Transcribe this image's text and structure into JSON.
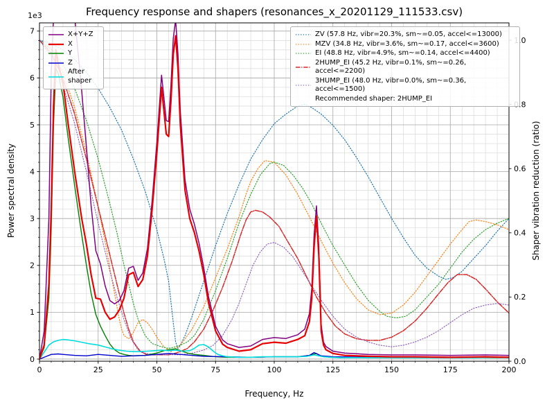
{
  "figure": {
    "title": "Frequency response and shapers (resonances_x_20201129_111533.csv)",
    "xlabel": "Frequency, Hz",
    "ylabel_left": "Power spectral density",
    "ylabel_right": "Shaper vibration reduction (ratio)",
    "offset_text": "1e3"
  },
  "chart_data": {
    "type": "line",
    "title": "Frequency response and shapers (resonances_x_20201129_111533.csv)",
    "xlabel": "Frequency, Hz",
    "ylabel_left": "Power spectral density",
    "ylabel_right": "Shaper vibration reduction (ratio)",
    "grid": true,
    "xlim": [
      0,
      200
    ],
    "x_major_ticks": [
      0,
      25,
      50,
      75,
      100,
      125,
      150,
      175,
      200
    ],
    "x_minor_step": 5,
    "left_axis": {
      "unit_multiplier": "1e3",
      "ylim": [
        0,
        7.2
      ],
      "ticks": [
        0,
        1,
        2,
        3,
        4,
        5,
        6,
        7
      ],
      "minor_step": 0.2
    },
    "right_axis": {
      "ylim": [
        0,
        1.05
      ],
      "tick_labels": [
        "0.0",
        "0.2",
        "0.4",
        "0.6",
        "0.8",
        "1.0"
      ],
      "tick_values": [
        0,
        0.2,
        0.4,
        0.6,
        0.8,
        1.0
      ]
    },
    "recommendation": "Recommended shaper: 2HUMP_EI",
    "psd_series": [
      {
        "name": "X+Y+Z",
        "color": "#800080",
        "style": "solid",
        "width": 1.5,
        "axis": "left",
        "x": [
          0,
          2,
          4,
          5,
          6,
          7,
          8,
          10,
          12,
          15,
          18,
          20,
          22,
          24,
          26,
          28,
          30,
          32,
          34,
          36,
          38,
          40,
          42,
          44,
          46,
          48,
          50,
          52,
          53,
          54,
          55,
          56,
          57,
          58,
          59,
          60,
          62,
          64,
          66,
          68,
          70,
          72,
          75,
          78,
          80,
          85,
          90,
          95,
          100,
          105,
          110,
          113,
          115,
          116,
          117,
          118,
          119,
          120,
          121,
          122,
          125,
          130,
          140,
          150,
          160,
          175,
          190,
          200
        ],
        "y": [
          0,
          0.6,
          3.0,
          6.1,
          7.3,
          7.3,
          7.3,
          7.3,
          7.3,
          7.3,
          5.72,
          4.52,
          3.27,
          2.31,
          2.03,
          1.56,
          1.25,
          1.18,
          1.25,
          1.46,
          1.94,
          1.98,
          1.68,
          1.84,
          2.36,
          3.38,
          4.63,
          6.06,
          5.58,
          5.09,
          5.07,
          5.83,
          6.84,
          7.24,
          6.5,
          5.28,
          3.82,
          3.2,
          2.88,
          2.47,
          1.94,
          1.33,
          0.7,
          0.41,
          0.33,
          0.25,
          0.28,
          0.42,
          0.46,
          0.44,
          0.52,
          0.64,
          0.97,
          1.51,
          2.65,
          3.27,
          2.38,
          0.73,
          0.36,
          0.27,
          0.17,
          0.13,
          0.1,
          0.09,
          0.09,
          0.08,
          0.09,
          0.08
        ]
      },
      {
        "name": "X",
        "color": "#e60000",
        "style": "solid",
        "width": 2.2,
        "axis": "left",
        "x": [
          0,
          2,
          4,
          5,
          6,
          7,
          8,
          10,
          12,
          15,
          18,
          20,
          22,
          24,
          26,
          28,
          30,
          32,
          34,
          36,
          38,
          40,
          42,
          44,
          46,
          48,
          50,
          52,
          53,
          54,
          55,
          56,
          57,
          58,
          59,
          60,
          62,
          64,
          66,
          68,
          70,
          72,
          75,
          78,
          80,
          85,
          90,
          95,
          100,
          105,
          110,
          113,
          115,
          116,
          117,
          118,
          119,
          120,
          121,
          122,
          125,
          130,
          140,
          150,
          160,
          175,
          190,
          200
        ],
        "y": [
          0,
          0.3,
          1.6,
          3.2,
          5.4,
          6.6,
          6.3,
          5.9,
          5.1,
          4.0,
          3.0,
          2.45,
          1.8,
          1.3,
          1.28,
          1.0,
          0.85,
          0.9,
          1.05,
          1.3,
          1.8,
          1.85,
          1.55,
          1.7,
          2.2,
          3.2,
          4.4,
          5.8,
          5.3,
          4.8,
          4.75,
          5.5,
          6.5,
          6.9,
          6.2,
          5.0,
          3.6,
          3.0,
          2.7,
          2.3,
          1.8,
          1.2,
          0.6,
          0.32,
          0.25,
          0.17,
          0.2,
          0.33,
          0.36,
          0.34,
          0.42,
          0.5,
          0.8,
          1.3,
          2.4,
          3.05,
          2.2,
          0.6,
          0.3,
          0.2,
          0.12,
          0.08,
          0.06,
          0.05,
          0.05,
          0.04,
          0.05,
          0.04
        ]
      },
      {
        "name": "Y",
        "color": "#008000",
        "style": "solid",
        "width": 1.4,
        "axis": "left",
        "x": [
          0,
          2,
          4,
          5,
          6,
          7,
          8,
          10,
          12,
          15,
          18,
          20,
          22,
          24,
          26,
          28,
          30,
          32,
          34,
          36,
          38,
          40,
          45,
          50,
          53,
          55,
          58,
          60,
          63,
          66,
          70,
          75,
          80,
          90,
          100,
          110,
          115,
          118,
          120,
          125,
          140,
          160,
          180,
          200
        ],
        "y": [
          0,
          0.25,
          1.3,
          2.8,
          5.0,
          6.2,
          6.1,
          5.6,
          4.8,
          3.7,
          2.65,
          2.0,
          1.4,
          0.95,
          0.7,
          0.5,
          0.32,
          0.2,
          0.13,
          0.1,
          0.08,
          0.07,
          0.08,
          0.13,
          0.18,
          0.2,
          0.22,
          0.18,
          0.13,
          0.1,
          0.08,
          0.05,
          0.04,
          0.04,
          0.05,
          0.05,
          0.08,
          0.12,
          0.06,
          0.04,
          0.03,
          0.03,
          0.03,
          0.03
        ]
      },
      {
        "name": "Z",
        "color": "#0000cc",
        "style": "solid",
        "width": 1.4,
        "axis": "left",
        "x": [
          0,
          3,
          5,
          8,
          10,
          15,
          20,
          25,
          30,
          35,
          40,
          45,
          50,
          55,
          60,
          65,
          70,
          80,
          90,
          100,
          110,
          115,
          117,
          120,
          125,
          140,
          160,
          180,
          200
        ],
        "y": [
          0,
          0.06,
          0.1,
          0.11,
          0.1,
          0.08,
          0.07,
          0.1,
          0.08,
          0.06,
          0.07,
          0.08,
          0.1,
          0.12,
          0.1,
          0.08,
          0.06,
          0.05,
          0.04,
          0.05,
          0.05,
          0.08,
          0.14,
          0.07,
          0.05,
          0.04,
          0.04,
          0.04,
          0.04
        ]
      },
      {
        "name": "After shaper",
        "color": "#00dddd",
        "style": "solid",
        "width": 1.6,
        "axis": "left",
        "x": [
          0,
          2,
          4,
          6,
          8,
          10,
          12,
          15,
          18,
          21,
          25,
          28,
          31,
          34,
          37,
          40,
          43,
          46,
          49,
          52,
          55,
          58,
          61,
          64,
          66,
          68,
          70,
          72,
          74,
          76,
          78,
          80,
          85,
          90,
          95,
          100,
          105,
          110,
          114,
          117,
          119,
          121,
          124,
          128,
          135,
          145,
          155,
          165,
          175,
          185,
          195,
          200
        ],
        "y": [
          0,
          0.15,
          0.3,
          0.37,
          0.4,
          0.42,
          0.41,
          0.39,
          0.36,
          0.33,
          0.3,
          0.26,
          0.22,
          0.19,
          0.17,
          0.16,
          0.16,
          0.17,
          0.18,
          0.19,
          0.18,
          0.19,
          0.17,
          0.18,
          0.23,
          0.3,
          0.31,
          0.26,
          0.17,
          0.1,
          0.07,
          0.05,
          0.04,
          0.04,
          0.05,
          0.05,
          0.05,
          0.05,
          0.06,
          0.09,
          0.07,
          0.05,
          0.04,
          0.03,
          0.03,
          0.03,
          0.03,
          0.03,
          0.03,
          0.03,
          0.04,
          0.03
        ]
      }
    ],
    "shaper_series": [
      {
        "name": "ZV (57.8 Hz, vibr=20.3%, sm~=0.05, accel<=13000)",
        "color": "#1f77b4",
        "style": "dot",
        "width": 1.2,
        "axis": "right",
        "x": [
          0,
          5,
          10,
          15,
          20,
          25,
          30,
          35,
          40,
          45,
          50,
          53,
          55,
          57,
          58,
          59,
          60,
          62,
          65,
          70,
          75,
          80,
          85,
          90,
          95,
          100,
          105,
          110,
          113,
          116,
          120,
          125,
          130,
          135,
          140,
          145,
          150,
          155,
          160,
          165,
          170,
          173,
          176,
          180,
          185,
          190,
          195,
          200
        ],
        "y": [
          1.0,
          0.99,
          0.97,
          0.94,
          0.9,
          0.85,
          0.79,
          0.72,
          0.63,
          0.53,
          0.41,
          0.32,
          0.25,
          0.12,
          0.06,
          0.04,
          0.05,
          0.08,
          0.14,
          0.25,
          0.36,
          0.46,
          0.55,
          0.63,
          0.69,
          0.74,
          0.77,
          0.795,
          0.8,
          0.79,
          0.77,
          0.735,
          0.69,
          0.635,
          0.575,
          0.51,
          0.445,
          0.385,
          0.33,
          0.29,
          0.265,
          0.255,
          0.26,
          0.28,
          0.32,
          0.36,
          0.405,
          0.445
        ]
      },
      {
        "name": "MZV (34.8 Hz, vibr=3.6%, sm~=0.17, accel<=3600)",
        "color": "#ff7f0e",
        "style": "dot",
        "width": 1.2,
        "axis": "right",
        "x": [
          0,
          5,
          10,
          15,
          20,
          25,
          28,
          30,
          32,
          34,
          35,
          36,
          38,
          40,
          42,
          44,
          46,
          48,
          50,
          53,
          56,
          60,
          65,
          70,
          75,
          80,
          85,
          88,
          90,
          93,
          96,
          100,
          105,
          110,
          115,
          120,
          125,
          130,
          135,
          140,
          145,
          150,
          155,
          160,
          165,
          170,
          175,
          180,
          183,
          186,
          190,
          195,
          200
        ],
        "y": [
          1.0,
          0.97,
          0.9,
          0.79,
          0.65,
          0.48,
          0.37,
          0.29,
          0.21,
          0.13,
          0.1,
          0.08,
          0.07,
          0.09,
          0.12,
          0.13,
          0.12,
          0.1,
          0.075,
          0.045,
          0.03,
          0.05,
          0.1,
          0.17,
          0.26,
          0.35,
          0.45,
          0.52,
          0.56,
          0.6,
          0.625,
          0.62,
          0.58,
          0.52,
          0.45,
          0.375,
          0.305,
          0.245,
          0.195,
          0.16,
          0.145,
          0.15,
          0.175,
          0.215,
          0.265,
          0.315,
          0.365,
          0.41,
          0.435,
          0.44,
          0.435,
          0.425,
          0.41
        ]
      },
      {
        "name": "EI (48.8 Hz, vibr=4.9%, sm~=0.14, accel<=4400)",
        "color": "#2ca02c",
        "style": "dot",
        "width": 1.2,
        "axis": "right",
        "x": [
          0,
          5,
          10,
          15,
          20,
          25,
          30,
          33,
          36,
          38,
          40,
          42,
          45,
          48,
          50,
          52,
          55,
          58,
          60,
          63,
          66,
          70,
          75,
          80,
          85,
          90,
          94,
          98,
          100,
          104,
          108,
          112,
          116,
          120,
          125,
          130,
          135,
          140,
          145,
          148,
          152,
          156,
          160,
          165,
          170,
          175,
          180,
          185,
          190,
          195,
          200
        ],
        "y": [
          1.0,
          0.975,
          0.925,
          0.85,
          0.75,
          0.63,
          0.49,
          0.4,
          0.3,
          0.24,
          0.18,
          0.13,
          0.08,
          0.055,
          0.05,
          0.045,
          0.04,
          0.045,
          0.05,
          0.06,
          0.08,
          0.13,
          0.22,
          0.32,
          0.43,
          0.52,
          0.58,
          0.615,
          0.62,
          0.61,
          0.58,
          0.54,
          0.49,
          0.43,
          0.36,
          0.3,
          0.24,
          0.19,
          0.155,
          0.14,
          0.135,
          0.14,
          0.16,
          0.2,
          0.24,
          0.29,
          0.34,
          0.38,
          0.41,
          0.43,
          0.445
        ]
      },
      {
        "name": "2HUMP_EI (45.2 Hz, vibr=0.1%, sm~=0.26, accel<=2200)",
        "color": "#d62728",
        "style": "dashdot",
        "width": 1.5,
        "axis": "right",
        "x": [
          0,
          5,
          10,
          15,
          20,
          25,
          30,
          33,
          36,
          38,
          40,
          43,
          46,
          50,
          55,
          58,
          60,
          63,
          66,
          70,
          74,
          78,
          82,
          86,
          88,
          90,
          92,
          95,
          98,
          102,
          106,
          110,
          114,
          118,
          122,
          126,
          130,
          135,
          140,
          145,
          150,
          155,
          160,
          165,
          170,
          174,
          178,
          182,
          186,
          190,
          195,
          200
        ],
        "y": [
          1.0,
          0.96,
          0.88,
          0.77,
          0.63,
          0.48,
          0.33,
          0.24,
          0.15,
          0.1,
          0.06,
          0.03,
          0.02,
          0.02,
          0.02,
          0.025,
          0.03,
          0.04,
          0.06,
          0.1,
          0.16,
          0.23,
          0.31,
          0.4,
          0.44,
          0.465,
          0.47,
          0.465,
          0.45,
          0.42,
          0.37,
          0.32,
          0.26,
          0.2,
          0.15,
          0.11,
          0.085,
          0.07,
          0.065,
          0.065,
          0.075,
          0.095,
          0.125,
          0.165,
          0.21,
          0.245,
          0.27,
          0.27,
          0.255,
          0.225,
          0.185,
          0.15
        ]
      },
      {
        "name": "3HUMP_EI (48.0 Hz, vibr=0.0%, sm~=0.36, accel<=1500)",
        "color": "#9467bd",
        "style": "dot",
        "width": 1.2,
        "axis": "right",
        "x": [
          0,
          5,
          10,
          15,
          20,
          25,
          30,
          33,
          36,
          39,
          42,
          45,
          50,
          55,
          60,
          65,
          70,
          74,
          78,
          82,
          85,
          88,
          91,
          94,
          97,
          100,
          104,
          108,
          112,
          116,
          120,
          125,
          130,
          135,
          140,
          145,
          150,
          155,
          160,
          165,
          170,
          175,
          180,
          185,
          190,
          195,
          200
        ],
        "y": [
          1.0,
          0.95,
          0.86,
          0.74,
          0.59,
          0.43,
          0.28,
          0.2,
          0.13,
          0.07,
          0.035,
          0.025,
          0.02,
          0.02,
          0.02,
          0.025,
          0.035,
          0.05,
          0.08,
          0.13,
          0.18,
          0.24,
          0.3,
          0.34,
          0.365,
          0.37,
          0.355,
          0.325,
          0.28,
          0.235,
          0.19,
          0.14,
          0.1,
          0.075,
          0.06,
          0.05,
          0.045,
          0.05,
          0.06,
          0.075,
          0.095,
          0.12,
          0.145,
          0.165,
          0.175,
          0.18,
          0.175
        ]
      }
    ]
  }
}
